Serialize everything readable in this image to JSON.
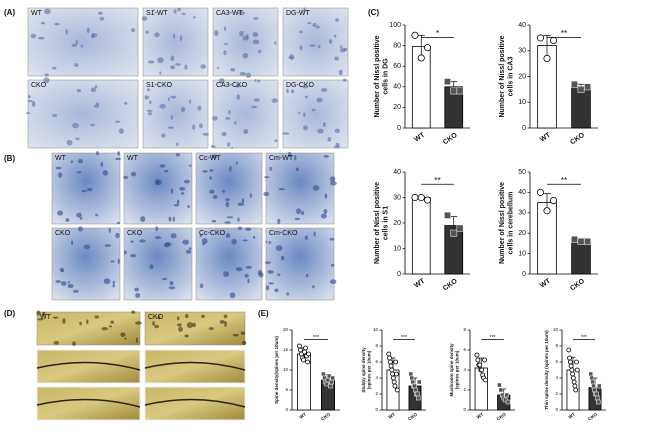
{
  "panels": {
    "A": {
      "label": "(A)",
      "images": [
        "WT",
        "S1-WT",
        "CA3-WT",
        "DG-WT",
        "CKO",
        "S1-CKO",
        "CA3-CKO",
        "DG-CKO"
      ]
    },
    "B": {
      "label": "(B)",
      "images": [
        "WT",
        "WT",
        "Cc-WT",
        "Cm-WT",
        "CKO",
        "CKO",
        "Cc-CKO",
        "Cm-CKO"
      ]
    },
    "C": {
      "label": "(C)"
    },
    "D": {
      "label": "(D)",
      "images": [
        "WT",
        "CKO"
      ]
    },
    "E": {
      "label": "(E)"
    }
  },
  "chart_data": [
    {
      "type": "bar",
      "ylabel": "Number of Nissl positive cells in DG",
      "categories": [
        "WT",
        "CKO"
      ],
      "values": [
        79,
        40
      ],
      "errors": [
        11,
        5
      ],
      "points": [
        [
          90,
          68,
          78
        ],
        [
          45,
          36,
          36
        ]
      ],
      "colors": [
        "#ffffff",
        "#333333"
      ],
      "significance": "*",
      "ylim": [
        0,
        100
      ],
      "yticks": [
        0,
        20,
        40,
        60,
        80,
        100
      ]
    },
    {
      "type": "bar",
      "ylabel": "Number of Nissl positive cells in CA3",
      "categories": [
        "WT",
        "CKO"
      ],
      "values": [
        32,
        16
      ],
      "errors": [
        4,
        1
      ],
      "points": [
        [
          35,
          27,
          34
        ],
        [
          17,
          15,
          16
        ]
      ],
      "colors": [
        "#ffffff",
        "#333333"
      ],
      "significance": "**",
      "ylim": [
        0,
        40
      ],
      "yticks": [
        0,
        10,
        20,
        30,
        40
      ]
    },
    {
      "type": "bar",
      "ylabel": "Number of Nissl positive cells in S1",
      "categories": [
        "WT",
        "CKO"
      ],
      "values": [
        30,
        19
      ],
      "errors": [
        0.5,
        3.5
      ],
      "points": [
        [
          30,
          30,
          29
        ],
        [
          23,
          16,
          18
        ]
      ],
      "colors": [
        "#ffffff",
        "#333333"
      ],
      "significance": "**",
      "ylim": [
        0,
        40
      ],
      "yticks": [
        0,
        10,
        20,
        30,
        40
      ]
    },
    {
      "type": "bar",
      "ylabel": "Number of Nissl positive cells in cerebellum",
      "categories": [
        "WT",
        "CKO"
      ],
      "values": [
        35,
        17
      ],
      "errors": [
        4.5,
        0.5
      ],
      "points": [
        [
          40,
          31,
          36
        ],
        [
          17,
          16,
          16
        ]
      ],
      "colors": [
        "#ffffff",
        "#333333"
      ],
      "significance": "**",
      "ylim": [
        0,
        50
      ],
      "yticks": [
        0,
        10,
        20,
        30,
        40,
        50
      ]
    },
    {
      "type": "bar",
      "ylabel": "Spine density(spines per 10um)",
      "categories": [
        "WT",
        "CKO"
      ],
      "values": [
        14,
        7.5
      ],
      "errors": [
        1.5,
        1.3
      ],
      "points": [
        [
          16,
          15,
          14,
          13,
          12.5,
          14.5,
          15.5,
          13.5,
          12,
          14
        ],
        [
          9,
          8,
          7,
          6.5,
          7.5,
          8.5,
          6,
          7,
          8
        ]
      ],
      "colors": [
        "#ffffff",
        "#333333"
      ],
      "significance": "***",
      "ylim": [
        0,
        20
      ],
      "yticks": [
        0,
        5,
        10,
        15,
        20
      ]
    },
    {
      "type": "bar",
      "ylabel": "Stubby spine density (spines per 10um)",
      "categories": [
        "WT",
        "CKO"
      ],
      "values": [
        5,
        3
      ],
      "errors": [
        1.5,
        1
      ],
      "points": [
        [
          7,
          6.5,
          6,
          5.5,
          5,
          4.5,
          4,
          3.5,
          3,
          6,
          4.5,
          2.5
        ],
        [
          4.5,
          4,
          3.5,
          3,
          3,
          2.5,
          2,
          2,
          1.5,
          3.5
        ]
      ],
      "colors": [
        "#ffffff",
        "#333333"
      ],
      "significance": "***",
      "ylim": [
        0,
        10
      ],
      "yticks": [
        0,
        2,
        4,
        6,
        8,
        10
      ]
    },
    {
      "type": "bar",
      "ylabel": "Mushroom spine density (spines per 10um)",
      "categories": [
        "WT",
        "CKO"
      ],
      "values": [
        4.2,
        1.5
      ],
      "errors": [
        1,
        0.6
      ],
      "points": [
        [
          5.5,
          5,
          4.5,
          4.5,
          4,
          4,
          3.5,
          3.2,
          5,
          3
        ],
        [
          2.5,
          2,
          1.5,
          1.2,
          1,
          1.5,
          0.8
        ]
      ],
      "colors": [
        "#ffffff",
        "#333333"
      ],
      "significance": "***",
      "ylim": [
        0,
        8
      ],
      "yticks": [
        0,
        2,
        4,
        6,
        8
      ]
    },
    {
      "type": "bar",
      "ylabel": "Thin spine density (spines per 10um)",
      "categories": [
        "WT",
        "CKO"
      ],
      "values": [
        5,
        2.8
      ],
      "errors": [
        1.6,
        1.2
      ],
      "points": [
        [
          7.5,
          6.5,
          6,
          5.5,
          5,
          4.5,
          4,
          3.5,
          3,
          2.5,
          6,
          5
        ],
        [
          4.5,
          4,
          3.5,
          3,
          2.5,
          2,
          2,
          1.5,
          1,
          3
        ]
      ],
      "colors": [
        "#ffffff",
        "#333333"
      ],
      "significance": "***",
      "ylim": [
        0,
        10
      ],
      "yticks": [
        0,
        2,
        4,
        6,
        8,
        10
      ]
    }
  ]
}
